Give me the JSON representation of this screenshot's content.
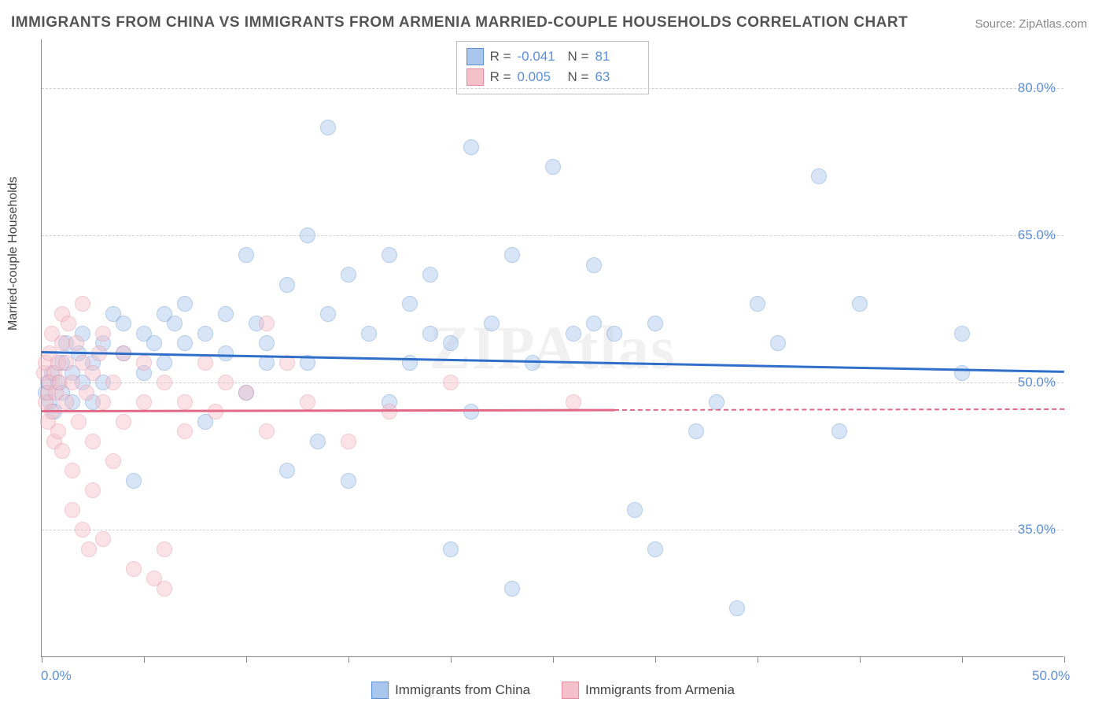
{
  "title": "IMMIGRANTS FROM CHINA VS IMMIGRANTS FROM ARMENIA MARRIED-COUPLE HOUSEHOLDS CORRELATION CHART",
  "source": "Source: ZipAtlas.com",
  "watermark": "ZIPAtlas",
  "ylabel": "Married-couple Households",
  "chart": {
    "type": "scatter",
    "background_color": "#ffffff",
    "grid_color": "#d0d0d0",
    "xlim": [
      0,
      50
    ],
    "ylim": [
      22,
      85
    ],
    "xticks": [
      0,
      5,
      10,
      15,
      20,
      25,
      30,
      35,
      40,
      45,
      50
    ],
    "xtick_labels": {
      "0": "0.0%",
      "50": "50.0%"
    },
    "yticks": [
      35,
      50,
      65,
      80
    ],
    "ytick_labels": {
      "35": "35.0%",
      "50": "50.0%",
      "65": "65.0%",
      "80": "80.0%"
    },
    "marker_radius": 10,
    "marker_opacity": 0.45,
    "series": [
      {
        "key": "china",
        "label": "Immigrants from China",
        "color_fill": "#a9c7ec",
        "color_stroke": "#5b8fd6",
        "trend_color": "#2f6fc9",
        "R": "-0.041",
        "N": "81",
        "trend": {
          "x0": 0,
          "y0": 53.2,
          "x1": 50,
          "y1": 51.2,
          "dash_from_x": null
        },
        "points": [
          [
            0.2,
            49
          ],
          [
            0.3,
            50
          ],
          [
            0.4,
            48
          ],
          [
            0.5,
            51
          ],
          [
            0.6,
            47
          ],
          [
            0.8,
            50
          ],
          [
            1.0,
            52
          ],
          [
            1.0,
            49
          ],
          [
            1.2,
            54
          ],
          [
            1.5,
            51
          ],
          [
            1.5,
            48
          ],
          [
            1.8,
            53
          ],
          [
            2.0,
            55
          ],
          [
            2.0,
            50
          ],
          [
            2.5,
            52
          ],
          [
            2.5,
            48
          ],
          [
            3.0,
            54
          ],
          [
            3.0,
            50
          ],
          [
            3.5,
            57
          ],
          [
            4.0,
            53
          ],
          [
            4.0,
            56
          ],
          [
            4.5,
            40
          ],
          [
            5.0,
            55
          ],
          [
            5.0,
            51
          ],
          [
            5.5,
            54
          ],
          [
            6.0,
            57
          ],
          [
            6.0,
            52
          ],
          [
            6.5,
            56
          ],
          [
            7.0,
            54
          ],
          [
            7.0,
            58
          ],
          [
            8.0,
            55
          ],
          [
            8.0,
            46
          ],
          [
            9.0,
            53
          ],
          [
            9.0,
            57
          ],
          [
            10.0,
            63
          ],
          [
            10.0,
            49
          ],
          [
            10.5,
            56
          ],
          [
            11.0,
            54
          ],
          [
            11.0,
            52
          ],
          [
            12.0,
            60
          ],
          [
            12.0,
            41
          ],
          [
            13.0,
            65
          ],
          [
            13.0,
            52
          ],
          [
            13.5,
            44
          ],
          [
            14.0,
            57
          ],
          [
            14.0,
            76
          ],
          [
            15.0,
            61
          ],
          [
            15.0,
            40
          ],
          [
            16.0,
            55
          ],
          [
            17.0,
            63
          ],
          [
            17.0,
            48
          ],
          [
            18.0,
            58
          ],
          [
            18.0,
            52
          ],
          [
            19.0,
            61
          ],
          [
            19.0,
            55
          ],
          [
            20.0,
            54
          ],
          [
            20.0,
            33
          ],
          [
            21.0,
            74
          ],
          [
            21.0,
            47
          ],
          [
            22.0,
            56
          ],
          [
            23.0,
            63
          ],
          [
            23.0,
            29
          ],
          [
            24.0,
            52
          ],
          [
            25.0,
            72
          ],
          [
            26.0,
            55
          ],
          [
            27.0,
            56
          ],
          [
            27.0,
            62
          ],
          [
            28.0,
            55
          ],
          [
            29.0,
            37
          ],
          [
            30.0,
            33
          ],
          [
            30.0,
            56
          ],
          [
            32.0,
            45
          ],
          [
            33.0,
            48
          ],
          [
            34.0,
            27
          ],
          [
            35.0,
            58
          ],
          [
            36.0,
            54
          ],
          [
            38.0,
            71
          ],
          [
            39.0,
            45
          ],
          [
            40.0,
            58
          ],
          [
            45.0,
            51
          ],
          [
            45.0,
            55
          ]
        ]
      },
      {
        "key": "armenia",
        "label": "Immigrants from Armenia",
        "color_fill": "#f4c1cb",
        "color_stroke": "#e88aa0",
        "trend_color": "#e26a87",
        "R": "0.005",
        "N": "63",
        "trend": {
          "x0": 0,
          "y0": 47.2,
          "x1": 50,
          "y1": 47.4,
          "dash_from_x": 28
        },
        "points": [
          [
            0.1,
            51
          ],
          [
            0.2,
            48
          ],
          [
            0.2,
            52
          ],
          [
            0.3,
            49
          ],
          [
            0.3,
            46
          ],
          [
            0.4,
            53
          ],
          [
            0.4,
            50
          ],
          [
            0.5,
            47
          ],
          [
            0.5,
            55
          ],
          [
            0.6,
            51
          ],
          [
            0.6,
            44
          ],
          [
            0.7,
            49
          ],
          [
            0.8,
            52
          ],
          [
            0.8,
            45
          ],
          [
            0.9,
            50
          ],
          [
            1.0,
            57
          ],
          [
            1.0,
            54
          ],
          [
            1.0,
            43
          ],
          [
            1.2,
            52
          ],
          [
            1.2,
            48
          ],
          [
            1.3,
            56
          ],
          [
            1.5,
            50
          ],
          [
            1.5,
            41
          ],
          [
            1.5,
            37
          ],
          [
            1.7,
            54
          ],
          [
            1.8,
            46
          ],
          [
            2.0,
            52
          ],
          [
            2.0,
            58
          ],
          [
            2.0,
            35
          ],
          [
            2.2,
            49
          ],
          [
            2.3,
            33
          ],
          [
            2.5,
            51
          ],
          [
            2.5,
            44
          ],
          [
            2.5,
            39
          ],
          [
            2.8,
            53
          ],
          [
            3.0,
            48
          ],
          [
            3.0,
            55
          ],
          [
            3.0,
            34
          ],
          [
            3.5,
            50
          ],
          [
            3.5,
            42
          ],
          [
            4.0,
            53
          ],
          [
            4.0,
            46
          ],
          [
            4.5,
            31
          ],
          [
            5.0,
            52
          ],
          [
            5.0,
            48
          ],
          [
            5.5,
            30
          ],
          [
            6.0,
            33
          ],
          [
            6.0,
            50
          ],
          [
            6.0,
            29
          ],
          [
            7.0,
            48
          ],
          [
            7.0,
            45
          ],
          [
            8.0,
            52
          ],
          [
            8.5,
            47
          ],
          [
            9.0,
            50
          ],
          [
            10.0,
            49
          ],
          [
            11.0,
            56
          ],
          [
            11.0,
            45
          ],
          [
            12.0,
            52
          ],
          [
            13.0,
            48
          ],
          [
            15.0,
            44
          ],
          [
            17.0,
            47
          ],
          [
            20.0,
            50
          ],
          [
            26.0,
            48
          ]
        ]
      }
    ]
  },
  "stats_labels": {
    "R": "R =",
    "N": "N ="
  },
  "legend_labels": {
    "china": "Immigrants from China",
    "armenia": "Immigrants from Armenia"
  }
}
